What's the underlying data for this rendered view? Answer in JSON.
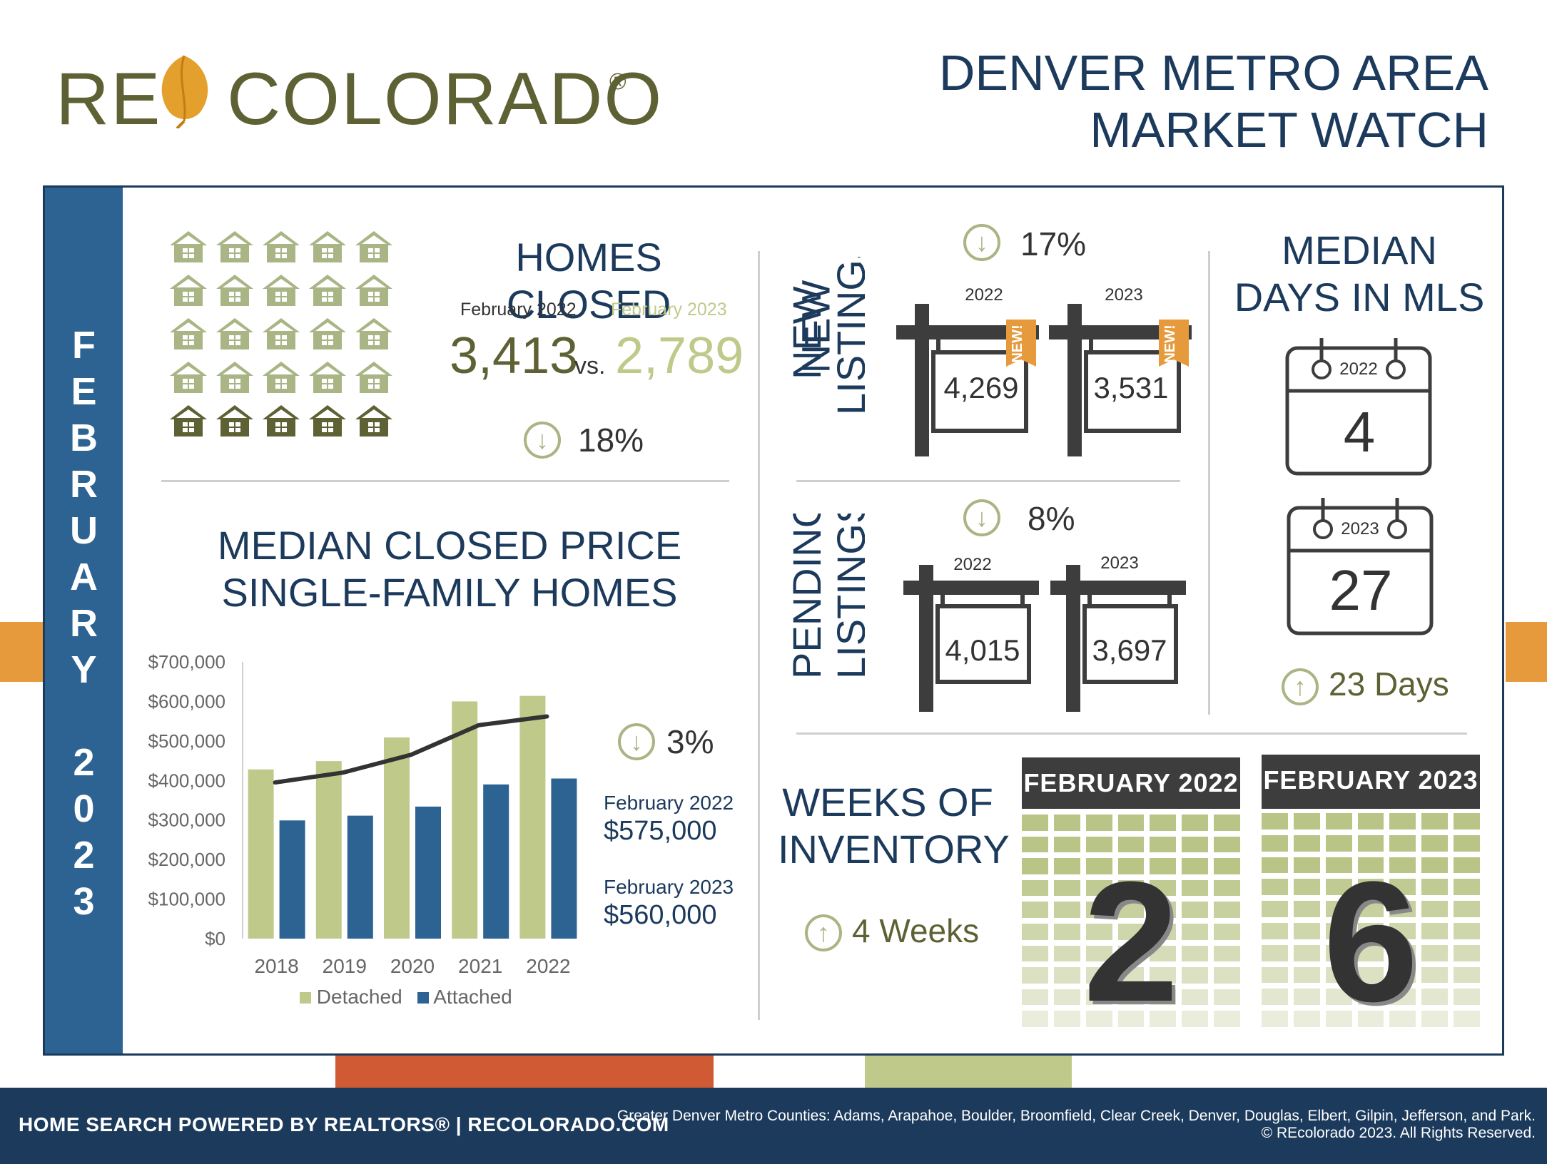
{
  "logo": {
    "left": "RE",
    "right": "COLORADO",
    "reg": "®"
  },
  "title": {
    "line1": "DENVER METRO AREA",
    "line2": "MARKET WATCH"
  },
  "sidebar": {
    "letters": [
      "F",
      "E",
      "B",
      "R",
      "U",
      "A",
      "R",
      "Y",
      "2",
      "0",
      "2",
      "3"
    ]
  },
  "homes_closed": {
    "title": "HOMES CLOSED",
    "label_2022": "February 2022",
    "label_2023": "February 2023",
    "value_2022": "3,413",
    "vs": "vs.",
    "value_2023": "2,789",
    "change_icon": "arrow-down-circle-icon",
    "change": "18%"
  },
  "new_listings": {
    "title_line1": "NEW",
    "title_line2": "LISTINGS",
    "change": "17%",
    "year_2022": "2022",
    "year_2023": "2023",
    "value_2022": "4,269",
    "value_2023": "3,531",
    "tag": "NEW!"
  },
  "pending_listings": {
    "title_line1": "PENDING",
    "title_line2": "LISTINGS",
    "change": "8%",
    "year_2022": "2022",
    "year_2023": "2023",
    "value_2022": "4,015",
    "value_2023": "3,697"
  },
  "median_days": {
    "title_line1": "MEDIAN",
    "title_line2": "DAYS IN MLS",
    "year_2022": "2022",
    "value_2022": "4",
    "year_2023": "2023",
    "value_2023": "27",
    "change": "23 Days"
  },
  "median_price": {
    "title_line1": "MEDIAN CLOSED PRICE",
    "title_line2": "SINGLE-FAMILY HOMES",
    "change": "3%",
    "label_2022": "February 2022",
    "value_2022": "$575,000",
    "label_2023": "February 2023",
    "value_2023": "$560,000"
  },
  "chart_data": {
    "type": "bar",
    "categories": [
      "2018",
      "2019",
      "2020",
      "2021",
      "2022"
    ],
    "series": [
      {
        "name": "Detached",
        "values": [
          428000,
          449000,
          509000,
          600000,
          614000
        ],
        "color": "#bfca8a"
      },
      {
        "name": "Attached",
        "values": [
          299000,
          311000,
          334000,
          390000,
          405000
        ],
        "color": "#2d6392"
      }
    ],
    "line": {
      "values": [
        395000,
        420000,
        465000,
        540000,
        562000
      ],
      "color": "#333333"
    },
    "ylim": [
      0,
      700000
    ],
    "yticks": [
      "$0",
      "$100,000",
      "$200,000",
      "$300,000",
      "$400,000",
      "$500,000",
      "$600,000",
      "$700,000"
    ],
    "xlabel": "",
    "ylabel": "",
    "grid": false,
    "legend": "bottom"
  },
  "weeks_inventory": {
    "title_line1": "WEEKS OF",
    "title_line2": "INVENTORY",
    "change": "4 Weeks",
    "header_2022": "FEBRUARY 2022",
    "header_2023": "FEBRUARY 2023",
    "value_2022": "2",
    "value_2023": "6"
  },
  "footer": {
    "left": "HOME SEARCH POWERED BY REALTORS®  |  RECOLORADO.COM",
    "right_line1": "Greater Denver Metro Counties: Adams, Arapahoe, Boulder, Broomfield, Clear Creek, Denver, Douglas, Elbert, Gilpin, Jefferson, and Park.",
    "right_line2": "© REcolorado 2023. All Rights Reserved."
  },
  "colors": {
    "navy": "#1c3a5c",
    "blue": "#2d6392",
    "olive": "#5e6133",
    "green": "#bfca8a",
    "orange": "#e69a3b",
    "rust": "#d05a33"
  }
}
